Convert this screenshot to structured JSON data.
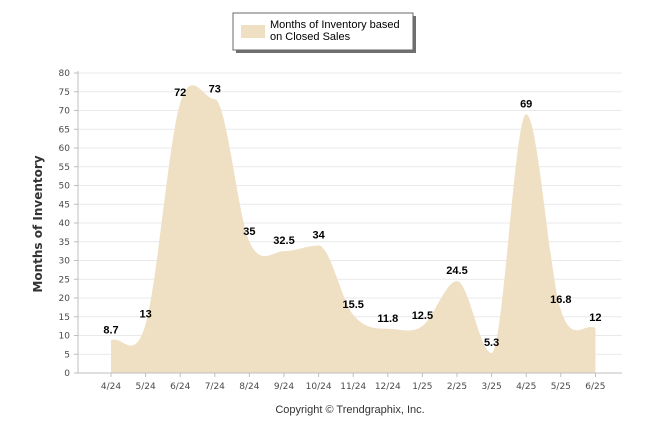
{
  "chart_data": {
    "type": "area",
    "categories": [
      "4/24",
      "5/24",
      "6/24",
      "7/24",
      "8/24",
      "9/24",
      "10/24",
      "11/24",
      "12/24",
      "1/25",
      "2/25",
      "3/25",
      "4/25",
      "5/25",
      "6/25"
    ],
    "series": [
      {
        "name": "Months of Inventory based on Closed Sales",
        "values": [
          8.7,
          13,
          72,
          73,
          35,
          32.5,
          34,
          15.5,
          11.8,
          12.5,
          24.5,
          5.3,
          69,
          16.8,
          12
        ],
        "labels": [
          "8.7",
          "13",
          "72",
          "73",
          "35",
          "32.5",
          "34",
          "15.5",
          "11.8",
          "12.5",
          "24.5",
          "5.3",
          "69",
          "16.8",
          "12"
        ],
        "color": "#efdfc3"
      }
    ],
    "ylabel": "Months of Inventory",
    "xlabel": "",
    "ylim": [
      0,
      80
    ],
    "yticks": [
      "0",
      "5",
      "10",
      "15",
      "20",
      "25",
      "30",
      "35",
      "40",
      "45",
      "50",
      "55",
      "60",
      "65",
      "70",
      "75",
      "80"
    ],
    "grid": true,
    "legend_position": "top-center"
  },
  "legend": {
    "line1": "Months of Inventory based",
    "line2": "on Closed Sales"
  },
  "footer": {
    "copyright": "Copyright © Trendgraphix, Inc."
  },
  "colors": {
    "area_fill": "#efdfc3",
    "grid": "#e9e9e9",
    "axis": "#bfbfbf"
  }
}
